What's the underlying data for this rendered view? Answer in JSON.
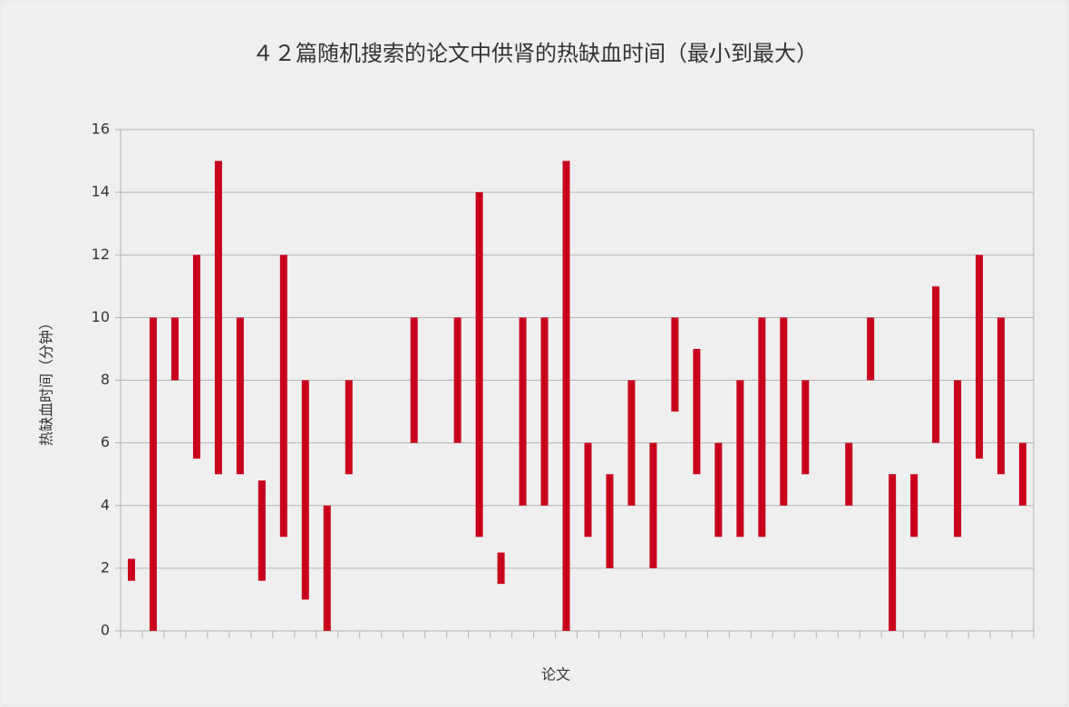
{
  "chart_data": {
    "type": "range_bar",
    "title": "４２篇随机搜索的论文中供肾的热缺血时间（最小到最大）",
    "x_label": "论文",
    "y_label": "热缺血时间（分钟）",
    "categories": [
      null,
      null,
      null,
      null,
      null,
      null,
      null,
      null,
      null,
      null,
      null,
      null,
      null,
      null,
      null,
      null,
      null,
      null,
      null,
      null,
      null,
      null,
      null,
      null,
      null,
      null,
      null,
      null,
      null,
      null,
      null,
      null,
      null,
      null,
      null,
      null,
      null,
      null,
      null,
      null,
      null,
      null
    ],
    "low": [
      1.6,
      0,
      8,
      5.5,
      5,
      5,
      1.6,
      3,
      1,
      0,
      5,
      null,
      null,
      6,
      null,
      6,
      3,
      1.5,
      4,
      4,
      0,
      3,
      2,
      4,
      2,
      7,
      5,
      3,
      3,
      3,
      4,
      5,
      null,
      4,
      8,
      0,
      3,
      6,
      3,
      5.5,
      5,
      4
    ],
    "high": [
      2.3,
      10,
      10,
      12,
      15,
      10,
      4.8,
      12,
      8,
      4,
      8,
      null,
      null,
      10,
      null,
      10,
      14,
      2.5,
      10,
      10,
      15,
      6,
      5,
      8,
      6,
      10,
      9,
      6,
      8,
      10,
      10,
      8,
      null,
      6,
      10,
      5,
      5,
      11,
      8,
      12,
      10,
      6
    ],
    "color": "#c9001b",
    "ylim": [
      0,
      16
    ],
    "yticks": [
      0,
      2,
      4,
      6,
      8,
      10,
      12,
      14,
      16
    ],
    "grid": true
  }
}
